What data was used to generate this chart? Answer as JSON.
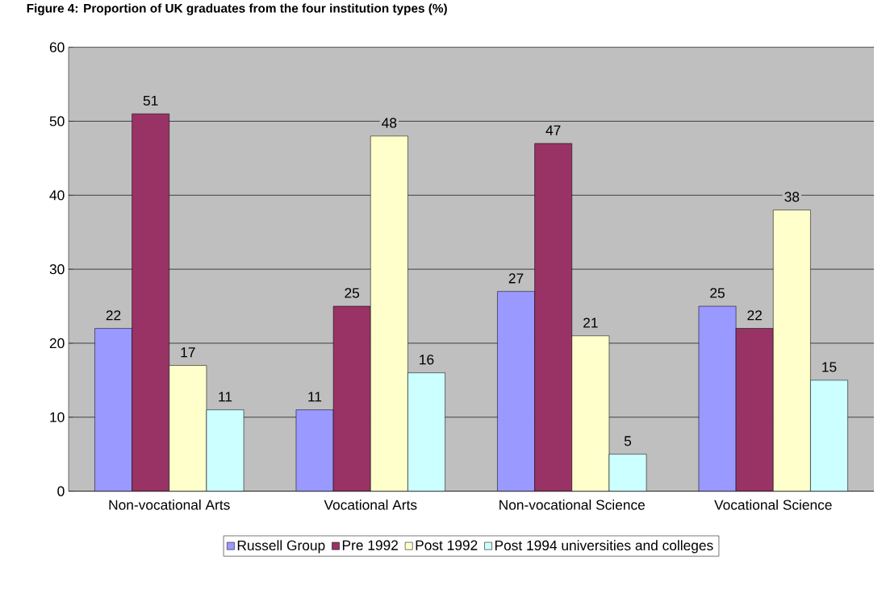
{
  "chart_data": {
    "type": "bar",
    "title": "Figure 4: Proportion of UK graduates from the four institution types (%)",
    "categories": [
      "Non-vocational Arts",
      "Vocational Arts",
      "Non-vocational Science",
      "Vocational Science"
    ],
    "series": [
      {
        "name": "Russell Group",
        "color": "#9999ff",
        "values": [
          22,
          11,
          27,
          25
        ]
      },
      {
        "name": "Pre 1992",
        "color": "#993366",
        "values": [
          51,
          25,
          47,
          22
        ]
      },
      {
        "name": "Post 1992",
        "color": "#ffffcc",
        "values": [
          17,
          48,
          21,
          38
        ]
      },
      {
        "name": "Post 1994 universities and colleges",
        "color": "#ccffff",
        "values": [
          11,
          16,
          5,
          15
        ]
      }
    ],
    "ylim": [
      0,
      60
    ],
    "yticks": [
      0,
      10,
      20,
      30,
      40,
      50,
      60
    ],
    "grid": "y",
    "legend": "bottom",
    "data_labels": true
  }
}
